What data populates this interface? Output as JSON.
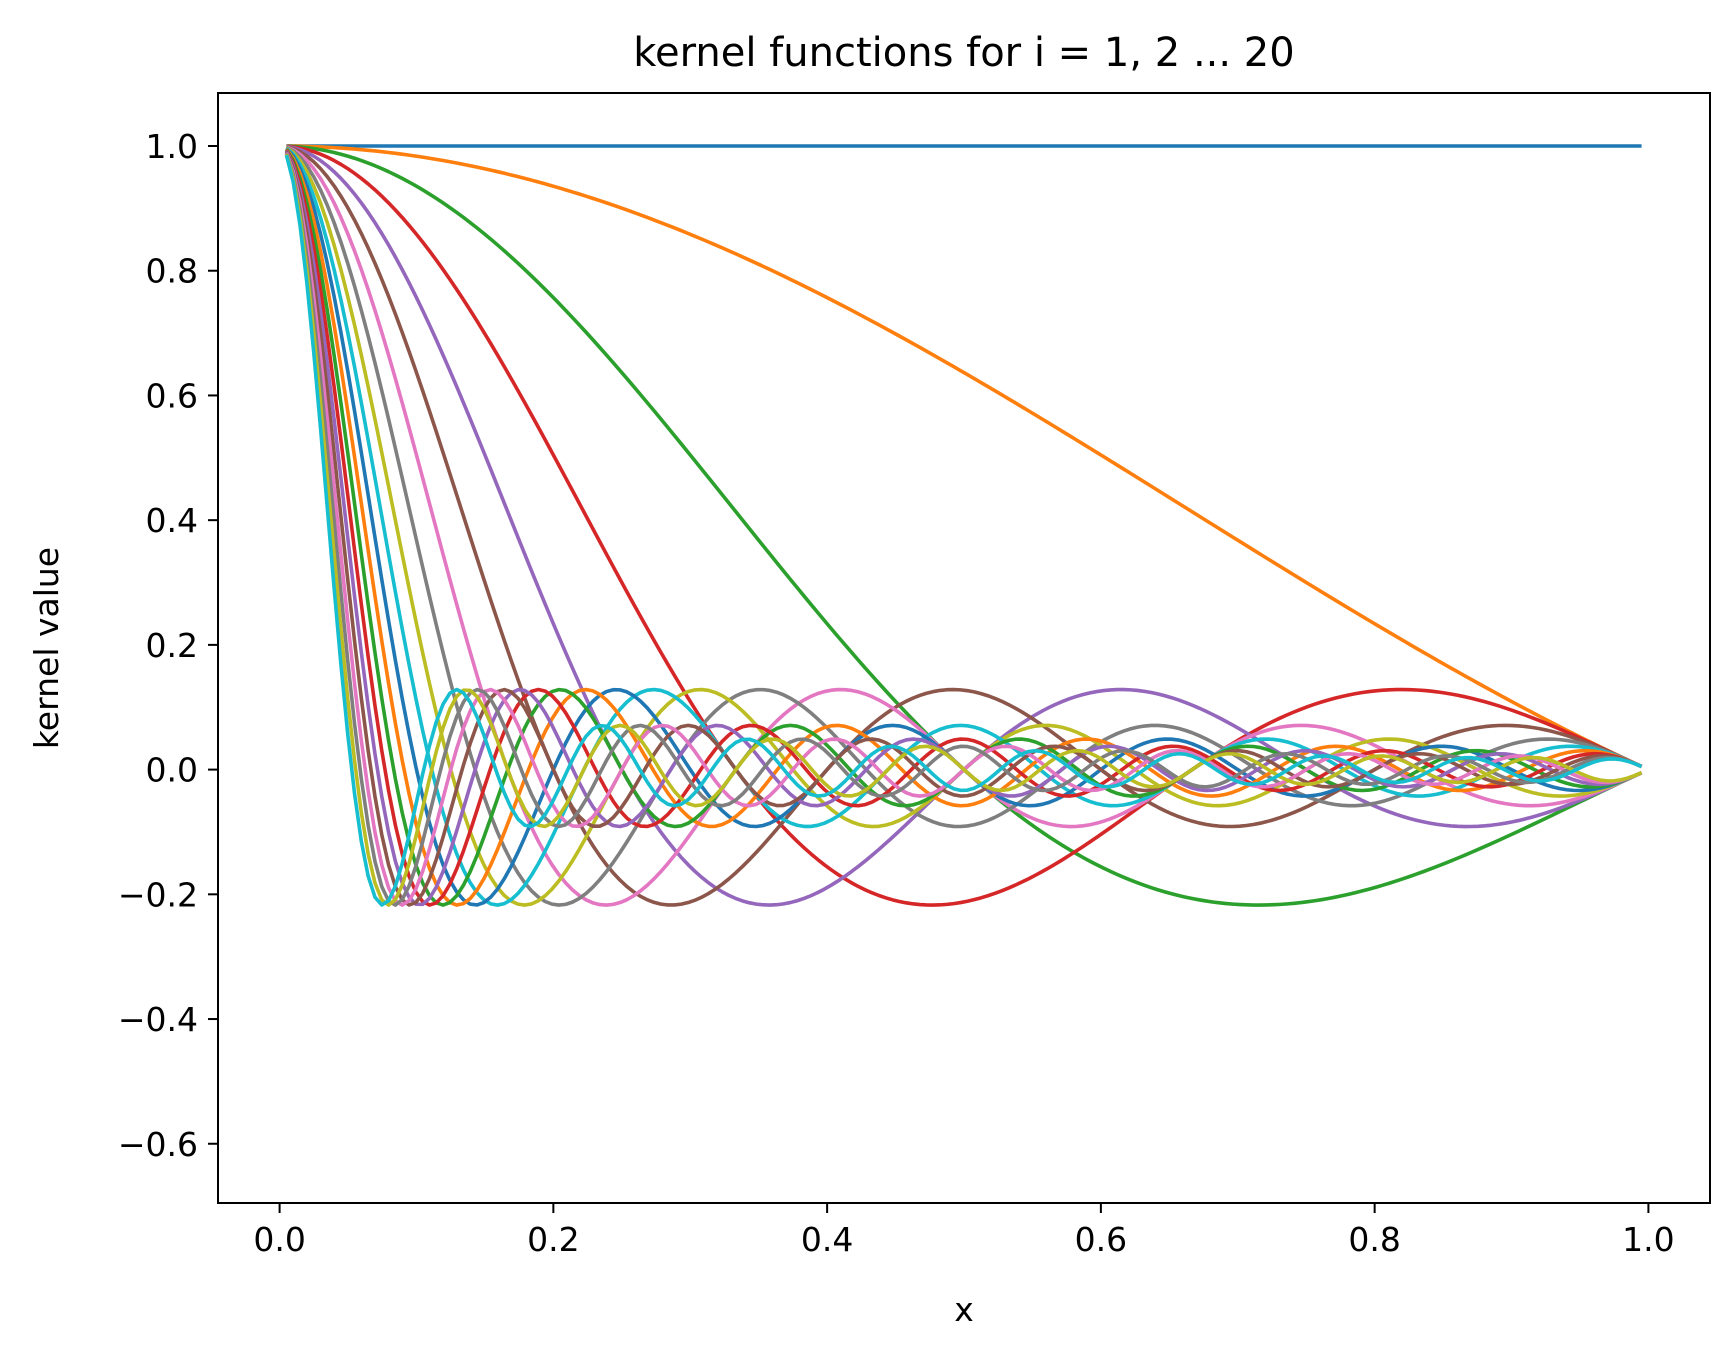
{
  "chart_data": {
    "type": "line",
    "title": "kernel functions for i = 1, 2 ... 20",
    "xlabel": "x",
    "ylabel": "kernel value",
    "xlim": [
      -0.045,
      1.045
    ],
    "ylim": [
      -0.695,
      1.085
    ],
    "xticks": [
      0.0,
      0.2,
      0.4,
      0.6,
      0.8,
      1.0
    ],
    "xtick_labels": [
      "0.0",
      "0.2",
      "0.4",
      "0.6",
      "0.8",
      "1.0"
    ],
    "yticks": [
      -0.6,
      -0.4,
      -0.2,
      0.0,
      0.2,
      0.4,
      0.6,
      0.8,
      1.0
    ],
    "ytick_labels": [
      "−0.6",
      "−0.4",
      "−0.2",
      "0.0",
      "0.2",
      "0.4",
      "0.6",
      "0.8",
      "1.0"
    ],
    "grid": false,
    "legend": "none",
    "x_range": [
      0.005,
      0.995
    ],
    "series": [
      {
        "i": 1,
        "color": "#1f77b4",
        "formula": "sin((i-1)*pi*x)/((i-1)*pi*x)"
      },
      {
        "i": 2,
        "color": "#ff7f0e",
        "formula": "sin((i-1)*pi*x)/((i-1)*pi*x)"
      },
      {
        "i": 3,
        "color": "#2ca02c",
        "formula": "sin((i-1)*pi*x)/((i-1)*pi*x)"
      },
      {
        "i": 4,
        "color": "#d62728",
        "formula": "sin((i-1)*pi*x)/((i-1)*pi*x)"
      },
      {
        "i": 5,
        "color": "#9467bd",
        "formula": "sin((i-1)*pi*x)/((i-1)*pi*x)"
      },
      {
        "i": 6,
        "color": "#8c564b",
        "formula": "sin((i-1)*pi*x)/((i-1)*pi*x)"
      },
      {
        "i": 7,
        "color": "#e377c2",
        "formula": "sin((i-1)*pi*x)/((i-1)*pi*x)"
      },
      {
        "i": 8,
        "color": "#7f7f7f",
        "formula": "sin((i-1)*pi*x)/((i-1)*pi*x)"
      },
      {
        "i": 9,
        "color": "#bcbd22",
        "formula": "sin((i-1)*pi*x)/((i-1)*pi*x)"
      },
      {
        "i": 10,
        "color": "#17becf",
        "formula": "sin((i-1)*pi*x)/((i-1)*pi*x)"
      },
      {
        "i": 11,
        "color": "#1f77b4",
        "formula": "sin((i-1)*pi*x)/((i-1)*pi*x)"
      },
      {
        "i": 12,
        "color": "#ff7f0e",
        "formula": "sin((i-1)*pi*x)/((i-1)*pi*x)"
      },
      {
        "i": 13,
        "color": "#2ca02c",
        "formula": "sin((i-1)*pi*x)/((i-1)*pi*x)"
      },
      {
        "i": 14,
        "color": "#d62728",
        "formula": "sin((i-1)*pi*x)/((i-1)*pi*x)"
      },
      {
        "i": 15,
        "color": "#9467bd",
        "formula": "sin((i-1)*pi*x)/((i-1)*pi*x)"
      },
      {
        "i": 16,
        "color": "#8c564b",
        "formula": "sin((i-1)*pi*x)/((i-1)*pi*x)"
      },
      {
        "i": 17,
        "color": "#e377c2",
        "formula": "sin((i-1)*pi*x)/((i-1)*pi*x)"
      },
      {
        "i": 18,
        "color": "#7f7f7f",
        "formula": "sin((i-1)*pi*x)/((i-1)*pi*x)"
      },
      {
        "i": 19,
        "color": "#bcbd22",
        "formula": "sin((i-1)*pi*x)/((i-1)*pi*x)"
      },
      {
        "i": 20,
        "color": "#17becf",
        "formula": "sin((i-1)*pi*x)/((i-1)*pi*x)"
      }
    ]
  }
}
